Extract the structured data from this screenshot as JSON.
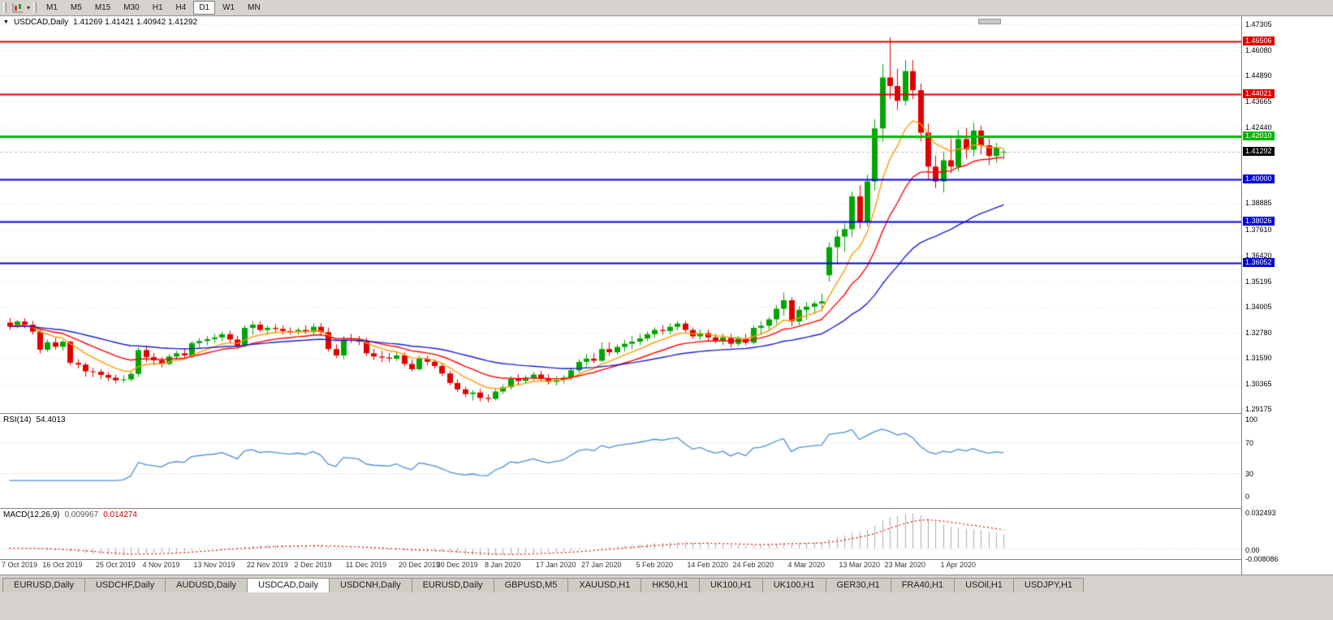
{
  "icons": {
    "chart_menu_arrow": "▼",
    "dropdown_caret": "▾"
  },
  "colors": {
    "bull": "#00A400",
    "bear": "#DF0000",
    "grid": "#e4e4e4",
    "current_line": "#b8b8b8",
    "hline_red": "#DD0000",
    "hline_green": "#00B800",
    "hline_blue": "#0000DD",
    "badge_black": "#000000"
  },
  "toolbar": {
    "timeframes": [
      "M1",
      "M5",
      "M15",
      "M30",
      "H1",
      "H4",
      "D1",
      "W1",
      "MN"
    ],
    "active": "D1"
  },
  "chart_data": {
    "type": "candlestick",
    "symbol": "USDCAD",
    "timeframe": "Daily",
    "title": "USDCAD,Daily",
    "ohlc_text": "1.41269 1.41421 1.40942 1.41292",
    "current": {
      "open": 1.41269,
      "high": 1.41421,
      "low": 1.40942,
      "close": 1.41292
    },
    "current_price": 1.41292,
    "y_axis": {
      "max": 1.47305,
      "min": 1.29175,
      "ticks": [
        1.47305,
        1.4608,
        1.4489,
        1.43665,
        1.4244,
        1.38885,
        1.3761,
        1.3642,
        1.35195,
        1.34005,
        1.3278,
        1.3159,
        1.30365,
        1.29175
      ]
    },
    "hlines": [
      {
        "value": 1.46506,
        "color": "#DD0000",
        "width": 2
      },
      {
        "value": 1.44021,
        "color": "#DD0000",
        "width": 2
      },
      {
        "value": 1.4201,
        "color": "#00B800",
        "width": 3
      },
      {
        "value": 1.4,
        "color": "#0000DD",
        "width": 2
      },
      {
        "value": 1.38026,
        "color": "#0000DD",
        "width": 2
      },
      {
        "value": 1.36052,
        "color": "#0000DD",
        "width": 2
      }
    ],
    "moving_averages": [
      {
        "period": 8,
        "color": "#FF9900"
      },
      {
        "period": 17,
        "color": "#FF0000"
      },
      {
        "period": 40,
        "color": "#2020CC"
      }
    ],
    "x_labels": [
      {
        "text": "7 Oct 2019",
        "index": 0
      },
      {
        "text": "16 Oct 2019",
        "index": 7
      },
      {
        "text": "25 Oct 2019",
        "index": 14
      },
      {
        "text": "4 Nov 2019",
        "index": 20
      },
      {
        "text": "13 Nov 2019",
        "index": 27
      },
      {
        "text": "22 Nov 2019",
        "index": 34
      },
      {
        "text": "2 Dec 2019",
        "index": 40
      },
      {
        "text": "11 Dec 2019",
        "index": 47
      },
      {
        "text": "20 Dec 2019",
        "index": 54
      },
      {
        "text": "30 Dec 2019",
        "index": 59
      },
      {
        "text": "8 Jan 2020",
        "index": 65
      },
      {
        "text": "17 Jan 2020",
        "index": 72
      },
      {
        "text": "27 Jan 2020",
        "index": 78
      },
      {
        "text": "5 Feb 2020",
        "index": 85
      },
      {
        "text": "14 Feb 2020",
        "index": 92
      },
      {
        "text": "24 Feb 2020",
        "index": 98
      },
      {
        "text": "4 Mar 2020",
        "index": 105
      },
      {
        "text": "13 Mar 2020",
        "index": 112
      },
      {
        "text": "23 Mar 2020",
        "index": 118
      },
      {
        "text": "1 Apr 2020",
        "index": 125
      }
    ],
    "candles": [
      [
        1.3325,
        1.3347,
        1.329,
        1.3306
      ],
      [
        1.3306,
        1.3338,
        1.3296,
        1.333
      ],
      [
        1.333,
        1.3345,
        1.3298,
        1.3315
      ],
      [
        1.3315,
        1.3333,
        1.3268,
        1.3282
      ],
      [
        1.3282,
        1.329,
        1.3178,
        1.3197
      ],
      [
        1.3197,
        1.3245,
        1.3188,
        1.3232
      ],
      [
        1.3232,
        1.3252,
        1.3198,
        1.3211
      ],
      [
        1.3211,
        1.3243,
        1.3193,
        1.3235
      ],
      [
        1.3235,
        1.324,
        1.3123,
        1.3135
      ],
      [
        1.3135,
        1.3152,
        1.3108,
        1.3127
      ],
      [
        1.3127,
        1.3138,
        1.307,
        1.3095
      ],
      [
        1.3095,
        1.3112,
        1.3068,
        1.3093
      ],
      [
        1.3093,
        1.3105,
        1.3058,
        1.3078
      ],
      [
        1.3078,
        1.3092,
        1.3048,
        1.3065
      ],
      [
        1.3065,
        1.308,
        1.3038,
        1.3053
      ],
      [
        1.3053,
        1.3077,
        1.3042,
        1.3057
      ],
      [
        1.3057,
        1.3097,
        1.3048,
        1.3083
      ],
      [
        1.3083,
        1.3209,
        1.3068,
        1.3195
      ],
      [
        1.3195,
        1.3217,
        1.3138,
        1.3162
      ],
      [
        1.3162,
        1.3182,
        1.3123,
        1.3147
      ],
      [
        1.3147,
        1.3162,
        1.3113,
        1.313
      ],
      [
        1.313,
        1.3177,
        1.3122,
        1.3165
      ],
      [
        1.3165,
        1.3192,
        1.3148,
        1.318
      ],
      [
        1.318,
        1.3202,
        1.3152,
        1.317
      ],
      [
        1.317,
        1.3237,
        1.3158,
        1.3228
      ],
      [
        1.3228,
        1.3252,
        1.3208,
        1.3238
      ],
      [
        1.3238,
        1.3262,
        1.3218,
        1.3247
      ],
      [
        1.3247,
        1.3272,
        1.3228,
        1.3255
      ],
      [
        1.3255,
        1.3282,
        1.3238,
        1.327
      ],
      [
        1.327,
        1.3287,
        1.3228,
        1.3245
      ],
      [
        1.3245,
        1.3262,
        1.3202,
        1.3215
      ],
      [
        1.3215,
        1.3312,
        1.3208,
        1.33
      ],
      [
        1.33,
        1.3332,
        1.3268,
        1.3315
      ],
      [
        1.3315,
        1.333,
        1.3278,
        1.329
      ],
      [
        1.329,
        1.3312,
        1.3268,
        1.33
      ],
      [
        1.33,
        1.3317,
        1.3278,
        1.3295
      ],
      [
        1.3295,
        1.3312,
        1.3268,
        1.3285
      ],
      [
        1.3285,
        1.3302,
        1.3268,
        1.328
      ],
      [
        1.328,
        1.3302,
        1.3268,
        1.329
      ],
      [
        1.329,
        1.3312,
        1.3272,
        1.328
      ],
      [
        1.328,
        1.3322,
        1.3268,
        1.3305
      ],
      [
        1.3305,
        1.3322,
        1.3262,
        1.328
      ],
      [
        1.328,
        1.3302,
        1.3188,
        1.32
      ],
      [
        1.32,
        1.3222,
        1.3158,
        1.317
      ],
      [
        1.317,
        1.3262,
        1.3152,
        1.325
      ],
      [
        1.325,
        1.3272,
        1.3228,
        1.3245
      ],
      [
        1.3245,
        1.3262,
        1.3218,
        1.3235
      ],
      [
        1.3235,
        1.3252,
        1.3168,
        1.318
      ],
      [
        1.318,
        1.3202,
        1.3148,
        1.3165
      ],
      [
        1.3165,
        1.3192,
        1.3138,
        1.316
      ],
      [
        1.316,
        1.3182,
        1.3138,
        1.3155
      ],
      [
        1.3155,
        1.3187,
        1.3143,
        1.317
      ],
      [
        1.317,
        1.3182,
        1.3118,
        1.313
      ],
      [
        1.313,
        1.3152,
        1.3093,
        1.3105
      ],
      [
        1.3105,
        1.3167,
        1.3098,
        1.3155
      ],
      [
        1.3155,
        1.3167,
        1.3123,
        1.314
      ],
      [
        1.314,
        1.3152,
        1.3108,
        1.312
      ],
      [
        1.312,
        1.3132,
        1.3073,
        1.3085
      ],
      [
        1.3085,
        1.3097,
        1.3028,
        1.304
      ],
      [
        1.304,
        1.3057,
        1.2998,
        1.301
      ],
      [
        1.301,
        1.3022,
        1.2973,
        1.2988
      ],
      [
        1.2988,
        1.3007,
        1.2958,
        1.2995
      ],
      [
        1.2995,
        1.3012,
        1.2953,
        1.297
      ],
      [
        1.297,
        1.2987,
        1.2948,
        1.2965
      ],
      [
        1.2965,
        1.3012,
        1.2958,
        1.3
      ],
      [
        1.3,
        1.3032,
        1.2988,
        1.302
      ],
      [
        1.302,
        1.3072,
        1.3008,
        1.306
      ],
      [
        1.306,
        1.3082,
        1.3028,
        1.305
      ],
      [
        1.305,
        1.3077,
        1.3038,
        1.3065
      ],
      [
        1.3065,
        1.3092,
        1.3053,
        1.308
      ],
      [
        1.308,
        1.3097,
        1.3048,
        1.306
      ],
      [
        1.306,
        1.3082,
        1.3033,
        1.3045
      ],
      [
        1.3045,
        1.3072,
        1.3028,
        1.3055
      ],
      [
        1.3055,
        1.3077,
        1.3038,
        1.3065
      ],
      [
        1.3065,
        1.3112,
        1.3053,
        1.31
      ],
      [
        1.31,
        1.3152,
        1.3088,
        1.314
      ],
      [
        1.314,
        1.3177,
        1.3118,
        1.3155
      ],
      [
        1.3155,
        1.3182,
        1.3133,
        1.3145
      ],
      [
        1.3145,
        1.3232,
        1.3138,
        1.32
      ],
      [
        1.32,
        1.3232,
        1.3168,
        1.3185
      ],
      [
        1.3185,
        1.3222,
        1.3173,
        1.321
      ],
      [
        1.321,
        1.3242,
        1.3188,
        1.3225
      ],
      [
        1.3225,
        1.3262,
        1.3198,
        1.3235
      ],
      [
        1.3235,
        1.3272,
        1.3218,
        1.325
      ],
      [
        1.325,
        1.3282,
        1.3238,
        1.327
      ],
      [
        1.327,
        1.3302,
        1.3253,
        1.329
      ],
      [
        1.329,
        1.3312,
        1.3268,
        1.3285
      ],
      [
        1.3285,
        1.3322,
        1.3268,
        1.3305
      ],
      [
        1.3305,
        1.3332,
        1.3288,
        1.332
      ],
      [
        1.332,
        1.3332,
        1.3278,
        1.329
      ],
      [
        1.329,
        1.3302,
        1.3248,
        1.326
      ],
      [
        1.326,
        1.3292,
        1.3243,
        1.3275
      ],
      [
        1.3275,
        1.3292,
        1.3238,
        1.3255
      ],
      [
        1.3255,
        1.3272,
        1.3228,
        1.324
      ],
      [
        1.324,
        1.3272,
        1.3218,
        1.3255
      ],
      [
        1.3255,
        1.3272,
        1.3208,
        1.3225
      ],
      [
        1.3225,
        1.3262,
        1.3213,
        1.325
      ],
      [
        1.325,
        1.3272,
        1.3218,
        1.323
      ],
      [
        1.323,
        1.3312,
        1.3223,
        1.33
      ],
      [
        1.33,
        1.3332,
        1.3268,
        1.331
      ],
      [
        1.331,
        1.3352,
        1.3288,
        1.334
      ],
      [
        1.334,
        1.3407,
        1.3318,
        1.339
      ],
      [
        1.339,
        1.3467,
        1.3358,
        1.343
      ],
      [
        1.343,
        1.3445,
        1.3308,
        1.333
      ],
      [
        1.333,
        1.3402,
        1.3313,
        1.3385
      ],
      [
        1.3385,
        1.3422,
        1.3338,
        1.34
      ],
      [
        1.34,
        1.3427,
        1.3363,
        1.3415
      ],
      [
        1.3415,
        1.3462,
        1.3378,
        1.3425
      ],
      [
        1.3548,
        1.3702,
        1.3518,
        1.368
      ],
      [
        1.368,
        1.3762,
        1.3598,
        1.373
      ],
      [
        1.373,
        1.3792,
        1.3658,
        1.3765
      ],
      [
        1.3765,
        1.3942,
        1.3728,
        1.392
      ],
      [
        1.392,
        1.3972,
        1.3768,
        1.38
      ],
      [
        1.38,
        1.4022,
        1.3778,
        1.399
      ],
      [
        1.399,
        1.4282,
        1.3948,
        1.424
      ],
      [
        1.424,
        1.4542,
        1.4178,
        1.448
      ],
      [
        1.448,
        1.467,
        1.4378,
        1.444
      ],
      [
        1.444,
        1.4522,
        1.4328,
        1.437
      ],
      [
        1.437,
        1.4562,
        1.4348,
        1.451
      ],
      [
        1.451,
        1.4562,
        1.4378,
        1.442
      ],
      [
        1.442,
        1.4452,
        1.4178,
        1.422
      ],
      [
        1.422,
        1.4262,
        1.3998,
        1.406
      ],
      [
        1.406,
        1.4112,
        1.3958,
        1.399
      ],
      [
        1.399,
        1.4132,
        1.3938,
        1.409
      ],
      [
        1.409,
        1.4192,
        1.4028,
        1.406
      ],
      [
        1.406,
        1.4232,
        1.4038,
        1.419
      ],
      [
        1.419,
        1.4242,
        1.4098,
        1.414
      ],
      [
        1.414,
        1.4267,
        1.4108,
        1.423
      ],
      [
        1.423,
        1.4252,
        1.4118,
        1.416
      ],
      [
        1.416,
        1.4192,
        1.4068,
        1.411
      ],
      [
        1.411,
        1.4172,
        1.4078,
        1.415
      ],
      [
        1.41269,
        1.41421,
        1.40942,
        1.41292
      ]
    ],
    "rsi": {
      "label": "RSI(14)",
      "value_text": "54.4013",
      "period": 14,
      "levels": [
        100,
        70,
        30,
        0
      ],
      "color": "#4F8FD0"
    },
    "macd": {
      "label": "MACD(12,26,9)",
      "main_text": "0.009967",
      "signal_text": "0.014274",
      "fast": 12,
      "slow": 26,
      "signal_period": 9,
      "scale_max": 0.032493,
      "scale_min": -0.008086,
      "axis_labels": [
        {
          "text": "0.032493",
          "value": 0.032493
        },
        {
          "text": "0.00",
          "value": 0
        },
        {
          "text": "-0.008086",
          "value": -0.008086
        }
      ],
      "hist_color": "#ABABAB",
      "signal_color": "#E00000"
    }
  },
  "tabs": {
    "items": [
      "EURUSD,Daily",
      "USDCHF,Daily",
      "AUDUSD,Daily",
      "USDCAD,Daily",
      "USDCNH,Daily",
      "EURUSD,Daily",
      "GBPUSD,M5",
      "XAUUSD,H1",
      "HK50,H1",
      "UK100,H1",
      "UK100,H1",
      "GER30,H1",
      "FRA40,H1",
      "USOil,H1",
      "USDJPY,H1"
    ],
    "active_index": 3
  }
}
